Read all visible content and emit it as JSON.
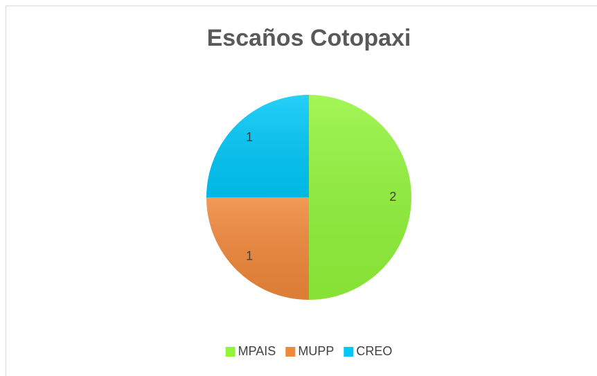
{
  "chart_data": {
    "type": "pie",
    "title": "Escaños Cotopaxi",
    "categories": [
      "MPAIS",
      "MUPP",
      "CREO"
    ],
    "values": [
      2,
      1,
      1
    ],
    "colors": [
      "#92f53a",
      "#f0883a",
      "#00c8f8"
    ],
    "legend": "bottom"
  }
}
